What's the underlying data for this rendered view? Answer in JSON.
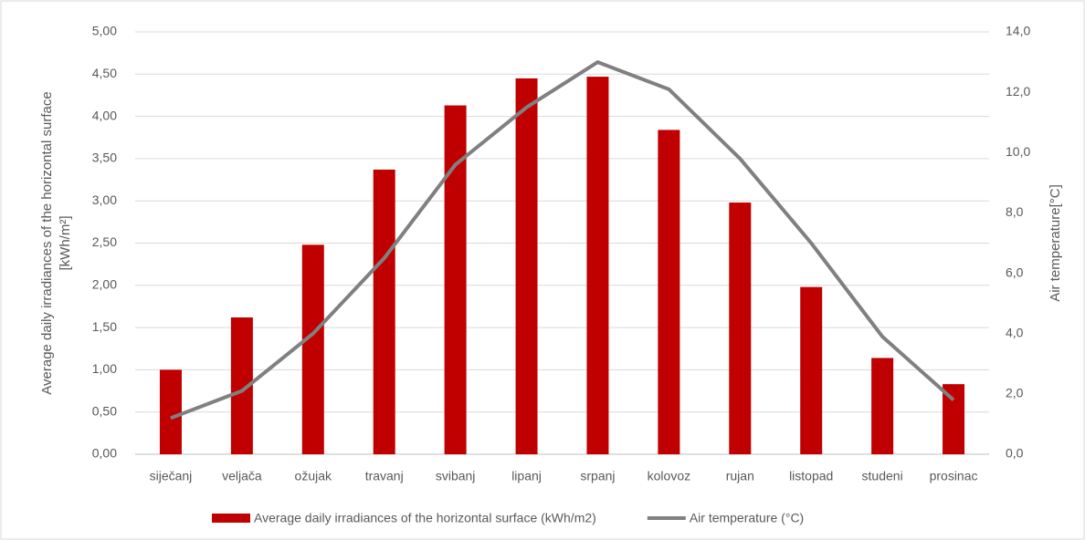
{
  "chart_data": {
    "type": "bar-line",
    "y_label": [
      "Average daily irradiances of the horizontal surface",
      "[kWh/m²]"
    ],
    "y2_label": "Air temperature[°C]",
    "categories": [
      "siječanj",
      "veljača",
      "ožujak",
      "travanj",
      "svibanj",
      "lipanj",
      "srpanj",
      "kolovoz",
      "rujan",
      "listopad",
      "studeni",
      "prosinac"
    ],
    "series": [
      {
        "name": "Average daily irradiances of the horizontal surface (kWh/m2)",
        "color": "#c00000",
        "kind": "bar",
        "values": [
          1.0,
          1.62,
          2.48,
          3.37,
          4.13,
          4.45,
          4.47,
          3.84,
          2.98,
          1.98,
          1.14,
          0.83
        ]
      },
      {
        "name": "Air temperature (°C)",
        "color": "#808080",
        "kind": "line",
        "axis": "y2",
        "values": [
          1.2,
          2.1,
          4.0,
          6.5,
          9.6,
          11.5,
          13.0,
          12.1,
          9.8,
          7.0,
          3.9,
          1.8
        ]
      }
    ],
    "ylim": [
      0,
      5
    ],
    "yticks": [
      {
        "value": 0,
        "label": "0,00"
      },
      {
        "value": 0.5,
        "label": "0,50"
      },
      {
        "value": 1,
        "label": "1,00"
      },
      {
        "value": 1.5,
        "label": "1,50"
      },
      {
        "value": 2,
        "label": "2,00"
      },
      {
        "value": 2.5,
        "label": "2,50"
      },
      {
        "value": 3,
        "label": "3,00"
      },
      {
        "value": 3.5,
        "label": "3,50"
      },
      {
        "value": 4,
        "label": "4,00"
      },
      {
        "value": 4.5,
        "label": "4,50"
      },
      {
        "value": 5,
        "label": "5,00"
      }
    ],
    "y2lim": [
      0,
      14
    ],
    "y2ticks": [
      {
        "value": 0,
        "label": "0,0"
      },
      {
        "value": 2,
        "label": "2,0"
      },
      {
        "value": 4,
        "label": "4,0"
      },
      {
        "value": 6,
        "label": "6,0"
      },
      {
        "value": 8,
        "label": "8,0"
      },
      {
        "value": 10,
        "label": "10,0"
      },
      {
        "value": 12,
        "label": "12,0"
      },
      {
        "value": 14,
        "label": "14,0"
      }
    ],
    "grid": true
  }
}
